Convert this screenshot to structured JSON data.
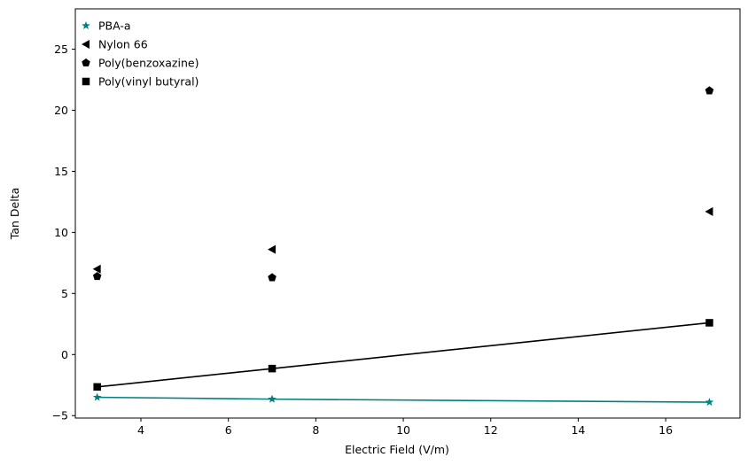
{
  "chart_data": {
    "type": "scatter",
    "xlabel": "Electric Field (V/m)",
    "ylabel": "Tan Delta",
    "xlim": [
      2.5,
      17.7
    ],
    "ylim": [
      -5.2,
      28.3
    ],
    "xticks": [
      4,
      6,
      8,
      10,
      12,
      14,
      16
    ],
    "yticks": [
      -5,
      0,
      5,
      10,
      15,
      20,
      25
    ],
    "grid": false,
    "legend": {
      "placement": "top-left",
      "frame": false
    },
    "series": [
      {
        "name": "PBA-a",
        "marker": "star",
        "color": "#008080",
        "line": true,
        "x": [
          3,
          7,
          17
        ],
        "y": [
          -3.5,
          -3.65,
          -3.9
        ]
      },
      {
        "name": "Nylon 66",
        "marker": "triangle-left",
        "color": "#000000",
        "line": false,
        "x": [
          3,
          7,
          17
        ],
        "y": [
          7.0,
          8.6,
          11.7
        ]
      },
      {
        "name": "Poly(benzoxazine)",
        "marker": "pentagon",
        "color": "#000000",
        "line": false,
        "x": [
          3,
          7,
          17
        ],
        "y": [
          6.4,
          6.3,
          21.6
        ]
      },
      {
        "name": "Poly(vinyl butyral)",
        "marker": "square",
        "color": "#000000",
        "line": true,
        "x": [
          3,
          7,
          17
        ],
        "y": [
          -2.65,
          -1.15,
          2.6
        ]
      }
    ]
  }
}
